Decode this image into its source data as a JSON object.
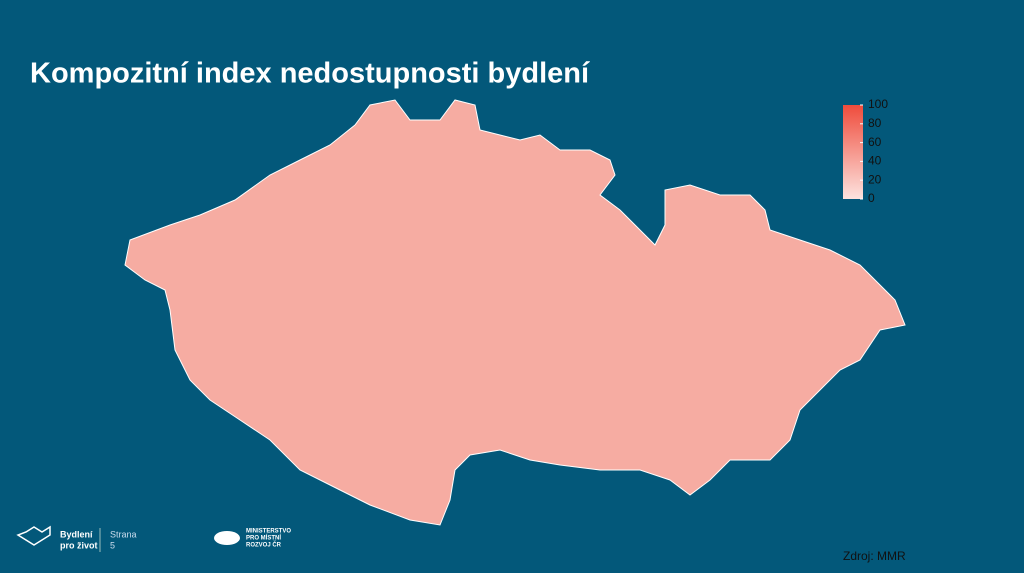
{
  "title": "Kompozitní index nedostupnosti bydlení",
  "legend": {
    "range": [
      0,
      100
    ],
    "ticks": [
      0,
      20,
      40,
      60,
      80,
      100
    ],
    "colors": [
      "#fde3df",
      "#ef4c3c"
    ]
  },
  "source": "Zdroj: MMR",
  "footer": {
    "brand_line1": "Bydlení",
    "brand_line2": "pro život",
    "page_label": "Strana",
    "page_number": "5",
    "ministry_line1": "MINISTERSTVO",
    "ministry_line2": "PRO MÍSTNÍ",
    "ministry_line3": "ROZVOJ ČR"
  }
}
